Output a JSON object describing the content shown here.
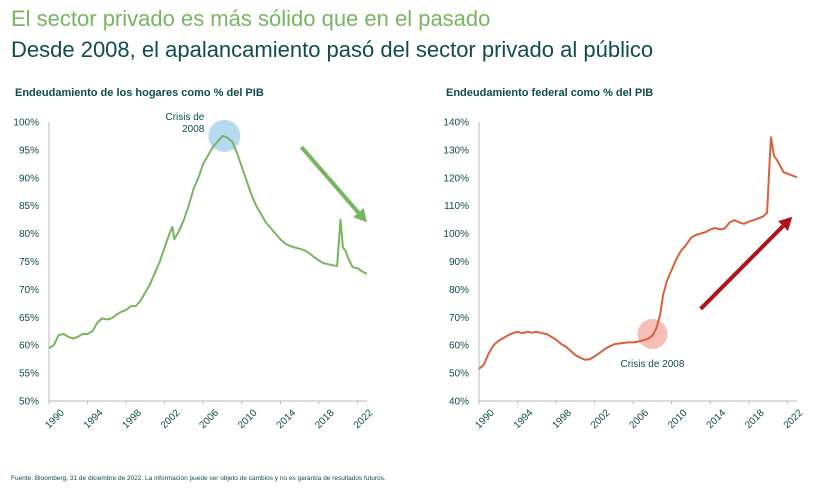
{
  "header": {
    "title": "El sector privado es más sólido que en el pasado",
    "subtitle": "Desde 2008, el apalancamiento pasó del sector privado al público"
  },
  "colors": {
    "green": "#77b560",
    "red": "#d9603b",
    "dark_red": "#b0121b",
    "navy": "#0f4c4a",
    "bubble_blue": "#a9d4f0",
    "bubble_pink": "#f3b4ac"
  },
  "chart_data": [
    {
      "type": "line",
      "title": "Endeudamiento de los hogares como % del PIB",
      "ylim": [
        50,
        100
      ],
      "yticks": [
        50,
        55,
        60,
        65,
        70,
        75,
        80,
        85,
        90,
        95,
        100
      ],
      "ytick_labels": [
        "50%",
        "55%",
        "60%",
        "65%",
        "70%",
        "75%",
        "80%",
        "85%",
        "90%",
        "95%",
        "100%"
      ],
      "xlim": [
        1990,
        2023
      ],
      "xticks": [
        1990,
        1994,
        1998,
        2002,
        2006,
        2010,
        2014,
        2018,
        2022
      ],
      "xtick_labels": [
        "1990",
        "1994",
        "1998",
        "2002",
        "2006",
        "2010",
        "2014",
        "2018",
        "2022"
      ],
      "series": [
        {
          "name": "Hogares",
          "color": "#77b560",
          "points": [
            [
              1990,
              59.5
            ],
            [
              1990.5,
              60
            ],
            [
              1991,
              61.8
            ],
            [
              1991.5,
              62
            ],
            [
              1992,
              61.5
            ],
            [
              1992.5,
              61.2
            ],
            [
              1993,
              61.5
            ],
            [
              1993.5,
              62
            ],
            [
              1994,
              62
            ],
            [
              1994.5,
              62.5
            ],
            [
              1995,
              64
            ],
            [
              1995.5,
              64.8
            ],
            [
              1996,
              64.6
            ],
            [
              1996.5,
              64.8
            ],
            [
              1997,
              65.5
            ],
            [
              1997.5,
              66
            ],
            [
              1998,
              66.3
            ],
            [
              1998.5,
              67
            ],
            [
              1999,
              67
            ],
            [
              1999.5,
              68
            ],
            [
              2000,
              69.5
            ],
            [
              2000.5,
              71
            ],
            [
              2001,
              73
            ],
            [
              2001.5,
              75
            ],
            [
              2002,
              77.5
            ],
            [
              2002.5,
              80
            ],
            [
              2002.8,
              81.2
            ],
            [
              2003,
              79
            ],
            [
              2003.5,
              80.5
            ],
            [
              2004,
              82.5
            ],
            [
              2004.5,
              85
            ],
            [
              2005,
              88
            ],
            [
              2005.5,
              90
            ],
            [
              2006,
              92.5
            ],
            [
              2006.5,
              94
            ],
            [
              2007,
              95.5
            ],
            [
              2007.5,
              96.5
            ],
            [
              2008,
              97.5
            ],
            [
              2008.5,
              97.2
            ],
            [
              2009,
              96.5
            ],
            [
              2009.5,
              94.5
            ],
            [
              2010,
              92
            ],
            [
              2010.5,
              89.5
            ],
            [
              2011,
              87
            ],
            [
              2011.5,
              85
            ],
            [
              2012,
              83.5
            ],
            [
              2012.5,
              82
            ],
            [
              2013,
              81
            ],
            [
              2013.5,
              80
            ],
            [
              2014,
              79
            ],
            [
              2014.5,
              78.2
            ],
            [
              2015,
              77.8
            ],
            [
              2015.5,
              77.5
            ],
            [
              2016,
              77.3
            ],
            [
              2016.5,
              77
            ],
            [
              2017,
              76.5
            ],
            [
              2017.5,
              75.8
            ],
            [
              2018,
              75.2
            ],
            [
              2018.5,
              74.7
            ],
            [
              2019,
              74.5
            ],
            [
              2019.5,
              74.3
            ],
            [
              2019.9,
              74.2
            ],
            [
              2020.25,
              82.5
            ],
            [
              2020.5,
              77.5
            ],
            [
              2020.75,
              77
            ],
            [
              2021,
              75.8
            ],
            [
              2021.5,
              74
            ],
            [
              2022,
              73.8
            ],
            [
              2022.5,
              73.2
            ],
            [
              2023,
              72.8
            ]
          ]
        }
      ],
      "annotations": [
        {
          "text_lines": [
            "Crisis de",
            "2008"
          ],
          "x": 2008.2,
          "y": 97.5
        }
      ],
      "arrow": {
        "direction": "down",
        "from": [
          2016.2,
          95.5
        ],
        "to": [
          2023,
          82
        ]
      }
    },
    {
      "type": "line",
      "title": "Endeudamiento federal como % del PIB",
      "ylim": [
        40,
        140
      ],
      "yticks": [
        40,
        50,
        60,
        70,
        80,
        90,
        100,
        110,
        120,
        130,
        140
      ],
      "ytick_labels": [
        "40%",
        "50%",
        "60%",
        "70%",
        "80%",
        "90%",
        "100%",
        "110%",
        "120%",
        "130%",
        "140%"
      ],
      "xlim": [
        1990,
        2023
      ],
      "xticks": [
        1990,
        1994,
        1998,
        2002,
        2006,
        2010,
        2014,
        2018,
        2022
      ],
      "xtick_labels": [
        "1990",
        "1994",
        "1998",
        "2002",
        "2006",
        "2010",
        "2014",
        "2018",
        "2022"
      ],
      "series": [
        {
          "name": "Federal",
          "color": "#d9603b",
          "points": [
            [
              1990,
              51.5
            ],
            [
              1990.5,
              53
            ],
            [
              1991,
              57
            ],
            [
              1991.5,
              60
            ],
            [
              1992,
              61.5
            ],
            [
              1992.5,
              62.5
            ],
            [
              1993,
              63.5
            ],
            [
              1993.5,
              64.3
            ],
            [
              1994,
              64.8
            ],
            [
              1994.5,
              64.3
            ],
            [
              1995,
              64.8
            ],
            [
              1995.5,
              64.5
            ],
            [
              1996,
              64.8
            ],
            [
              1996.5,
              64.3
            ],
            [
              1997,
              64
            ],
            [
              1997.5,
              63
            ],
            [
              1998,
              62
            ],
            [
              1998.5,
              60.5
            ],
            [
              1999,
              59.5
            ],
            [
              1999.5,
              58
            ],
            [
              2000,
              56.5
            ],
            [
              2000.5,
              55.5
            ],
            [
              2001,
              54.8
            ],
            [
              2001.5,
              55
            ],
            [
              2002,
              56
            ],
            [
              2002.5,
              57.2
            ],
            [
              2003,
              58.5
            ],
            [
              2003.5,
              59.5
            ],
            [
              2004,
              60.3
            ],
            [
              2004.5,
              60.6
            ],
            [
              2005,
              60.8
            ],
            [
              2005.5,
              61
            ],
            [
              2006,
              61
            ],
            [
              2006.5,
              61.3
            ],
            [
              2007,
              61.7
            ],
            [
              2007.5,
              62.2
            ],
            [
              2008,
              63.5
            ],
            [
              2008.4,
              66
            ],
            [
              2008.8,
              71
            ],
            [
              2009.1,
              78
            ],
            [
              2009.5,
              83
            ],
            [
              2010,
              87
            ],
            [
              2010.5,
              91
            ],
            [
              2011,
              94
            ],
            [
              2011.5,
              96
            ],
            [
              2012,
              98.5
            ],
            [
              2012.5,
              99.5
            ],
            [
              2013,
              100
            ],
            [
              2013.5,
              100.5
            ],
            [
              2014,
              101.5
            ],
            [
              2014.5,
              102
            ],
            [
              2015,
              101.5
            ],
            [
              2015.5,
              101.8
            ],
            [
              2016,
              104
            ],
            [
              2016.5,
              104.8
            ],
            [
              2017,
              104
            ],
            [
              2017.5,
              103.5
            ],
            [
              2018,
              104.3
            ],
            [
              2018.5,
              104.8
            ],
            [
              2019,
              105.5
            ],
            [
              2019.5,
              106.2
            ],
            [
              2019.9,
              107.5
            ],
            [
              2020.15,
              125
            ],
            [
              2020.3,
              134.5
            ],
            [
              2020.6,
              128
            ],
            [
              2021,
              126
            ],
            [
              2021.3,
              124
            ],
            [
              2021.6,
              122
            ],
            [
              2022,
              121.5
            ],
            [
              2022.5,
              120.8
            ],
            [
              2023,
              120.2
            ]
          ]
        }
      ],
      "annotations": [
        {
          "text_lines": [
            "Crisis de 2008"
          ],
          "x": 2008.0,
          "y": 64
        }
      ],
      "arrow": {
        "direction": "up",
        "from": [
          2013,
          73
        ],
        "to": [
          2022.5,
          106
        ]
      }
    }
  ],
  "footnote": "Fuente: Bloomberg, 31 de diciembre de 2022. La información puede ser objeto de cambios y no es garantía de resultados futuros."
}
